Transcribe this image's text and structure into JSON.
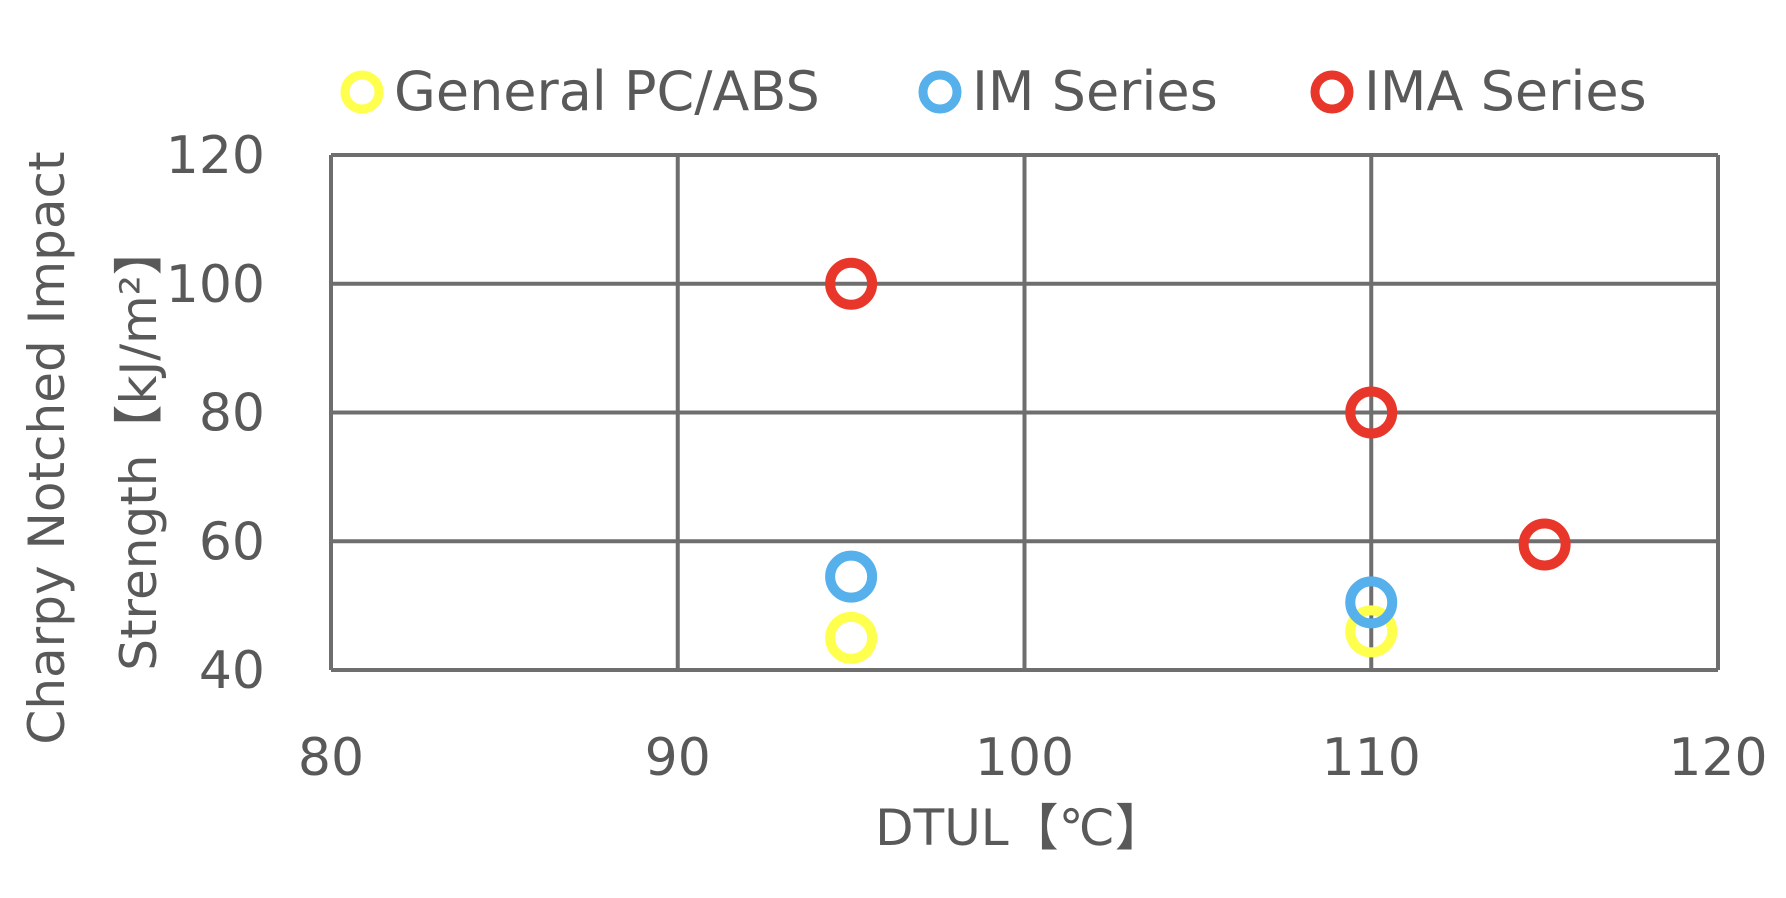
{
  "chart_data": {
    "type": "scatter",
    "title": "",
    "xlabel": "DTUL【℃】",
    "ylabel_lines": [
      "Charpy Notched Impact",
      "Strength【kJ/m²】"
    ],
    "xlim": [
      80,
      120
    ],
    "ylim": [
      40,
      120
    ],
    "x_ticks": [
      80,
      90,
      100,
      110,
      120
    ],
    "y_ticks": [
      40,
      60,
      80,
      100,
      120
    ],
    "grid": true,
    "legend_position": "top",
    "series": [
      {
        "name": "General PC/ABS",
        "color": "#FFFF4D",
        "points": [
          [
            95,
            45
          ],
          [
            110,
            46
          ]
        ]
      },
      {
        "name": "IM Series",
        "color": "#55B0EC",
        "points": [
          [
            95,
            54.5
          ],
          [
            110,
            50.5
          ]
        ]
      },
      {
        "name": "IMA Series",
        "color": "#E8372A",
        "points": [
          [
            95,
            100
          ],
          [
            110,
            80
          ],
          [
            115,
            59.5
          ]
        ]
      }
    ]
  }
}
